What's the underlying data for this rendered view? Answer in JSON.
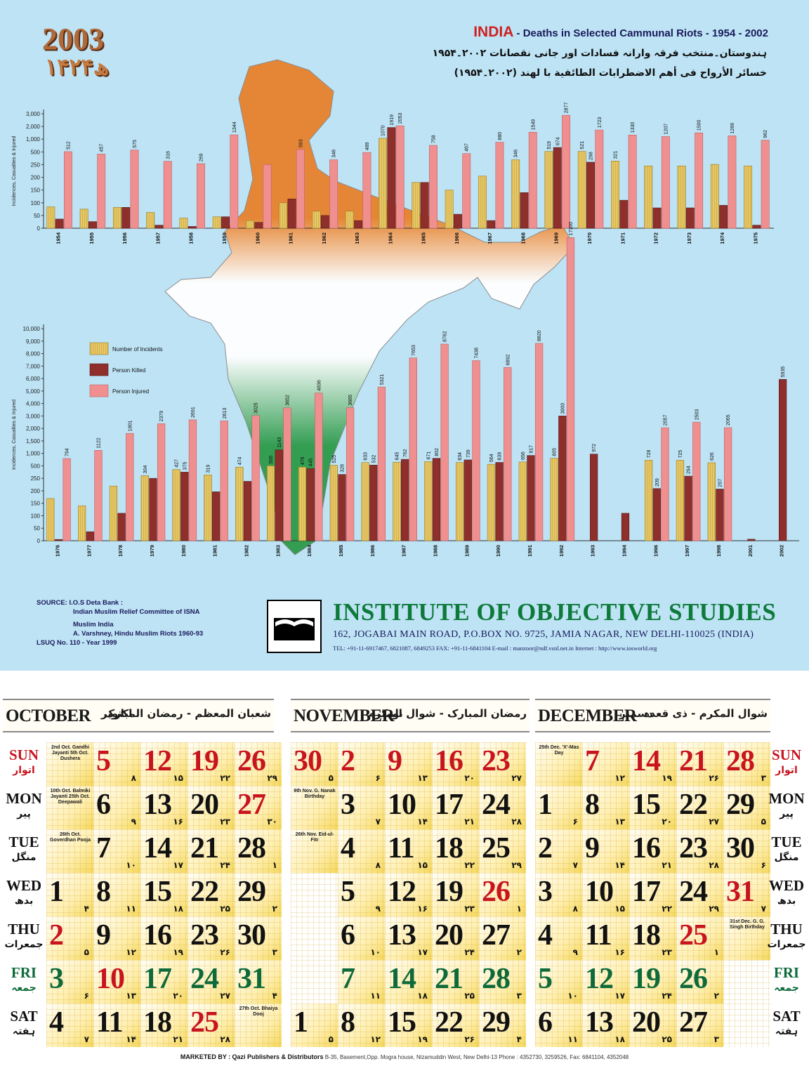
{
  "header": {
    "year": "2003",
    "hijri_year": "۱۴۲۴ھ",
    "title_country": "INDIA",
    "title_rest": " - Deaths in Selected Cammunal Riots - 1954 - 2002",
    "title_urdu": "ہندوستان۔منتخب فرقہ وارانہ فسادات اور جانی نقصانات ۲۰۰۲۔۱۹۵۴",
    "title_arabic": "خسائر الأرواح فى أهم الاضطرابات الطائفية با لهند (۲۰۰۲۔۱۹۵۴)"
  },
  "colors": {
    "incidents": "#e6c765",
    "killed": "#8e2f2c",
    "injured": "#ef8f8f",
    "map_top": "#e8822c",
    "map_bottom": "#2c9a4a",
    "background": "#bde3f5"
  },
  "chart_data": [
    {
      "type": "bar",
      "title": "",
      "ylabel": "Incidences, Casualties & Injured",
      "y_ticks": [
        "3,000",
        "2,000",
        "1,000",
        "500",
        "250",
        "200",
        "150",
        "100",
        "50",
        "0"
      ],
      "y_scale": "broken (0–250 linear, then 500 / 1,000 / 2,000 / 3,000)",
      "categories": [
        "1954",
        "1955",
        "1956",
        "1957",
        "1958",
        "1959",
        "1960",
        "1961",
        "1962",
        "1963",
        "1964",
        "1965",
        "1966",
        "1967",
        "1968",
        "1969",
        "1970",
        "1971",
        "1972",
        "1973",
        "1974",
        "1975"
      ],
      "series": [
        {
          "name": "Number of Incidents",
          "values": [
            84,
            75,
            82,
            62,
            40,
            45,
            30,
            100,
            67,
            67,
            1070,
            180,
            150,
            205,
            346,
            519,
            521,
            321,
            245,
            245,
            255,
            245
          ]
        },
        {
          "name": "Person Killed",
          "values": [
            36,
            26,
            82,
            12,
            7,
            45,
            23,
            115,
            50,
            30,
            1919,
            180,
            55,
            30,
            140,
            674,
            298,
            110,
            80,
            80,
            90,
            12
          ]
        },
        {
          "name": "Person Injured",
          "values": [
            512,
            457,
            575,
            316,
            269,
            1344,
            250,
            593,
            346,
            489,
            2053,
            758,
            467,
            880,
            1549,
            2877,
            1723,
            1330,
            1207,
            1500,
            1266,
            962
          ]
        }
      ],
      "data_labels": {
        "injured": [
          "512",
          "457",
          "575",
          "316",
          "269",
          "1344",
          "",
          "593",
          "346",
          "489",
          "2053",
          "758",
          "467",
          "880",
          "1549",
          "2877",
          "1723",
          "1330",
          "1207",
          "1500",
          "1266",
          "962"
        ],
        "incidents": [
          "",
          "",
          "",
          "",
          "",
          "",
          "",
          "",
          "",
          "",
          "1070",
          "",
          "",
          "",
          "346",
          "519",
          "521",
          "321",
          "",
          "",
          "",
          ""
        ],
        "killed": [
          "",
          "",
          "",
          "",
          "",
          "",
          "",
          "",
          "",
          "",
          "1919",
          "",
          "",
          "",
          "",
          "674",
          "298",
          "",
          "",
          "",
          "",
          ""
        ]
      }
    },
    {
      "type": "bar",
      "title": "",
      "ylabel": "Incidences, Casualties & Injured",
      "y_ticks": [
        "10,000",
        "9,000",
        "8,000",
        "7,000",
        "6,000",
        "5,000",
        "4,000",
        "3,000",
        "2,000",
        "1,500",
        "1,000",
        "500",
        "250",
        "200",
        "150",
        "100",
        "50",
        "0"
      ],
      "y_scale": "broken (0–250 linear, then 500 … 10,000)",
      "categories": [
        "1976",
        "1977",
        "1978",
        "1979",
        "1980",
        "1981",
        "1982",
        "1983",
        "1984",
        "1985",
        "1986",
        "1987",
        "1988",
        "1989",
        "1990",
        "1991",
        "1992",
        "1993",
        "1994",
        "1996",
        "1997",
        "1998",
        "2001",
        "2002"
      ],
      "series": [
        {
          "name": "Number of Incidents",
          "values": [
            169,
            140,
            219,
            304,
            427,
            319,
            474,
            500,
            476,
            525,
            633,
            645,
            671,
            634,
            564,
            656,
            805,
            0,
            0,
            728,
            725,
            626,
            0,
            0
          ]
        },
        {
          "name": "Person Killed",
          "values": [
            5,
            36,
            110,
            250,
            375,
            196,
            238,
            1143,
            445,
            328,
            532,
            762,
            802,
            739,
            639,
            917,
            3000,
            972,
            110,
            209,
            294,
            207,
            6,
            5935
          ]
        },
        {
          "name": "Person Injured",
          "values": [
            794,
            1122,
            1801,
            2379,
            2691,
            2613,
            3025,
            3652,
            4836,
            3665,
            5321,
            7653,
            8762,
            7438,
            6892,
            8820,
            17300,
            0,
            0,
            2057,
            2503,
            2065,
            0,
            0
          ]
        }
      ],
      "data_labels": {
        "injured": [
          "794",
          "1122",
          "1801",
          "2379",
          "2691",
          "2613",
          "3025",
          "3652",
          "4836",
          "3665",
          "5321",
          "7653",
          "8762",
          "7438",
          "6892",
          "8820",
          "17300",
          "",
          "",
          "2057",
          "2503",
          "2065",
          "",
          ""
        ],
        "incidents": [
          "",
          "",
          "",
          "304",
          "427",
          "319",
          "474",
          "500",
          "476",
          "525",
          "633",
          "645",
          "671",
          "634",
          "564",
          "656",
          "805",
          "",
          "",
          "728",
          "725",
          "626",
          "",
          ""
        ],
        "killed": [
          "",
          "",
          "",
          "",
          "375",
          "",
          "",
          "1143",
          "445",
          "328",
          "532",
          "762",
          "802",
          "739",
          "639",
          "917",
          "3000",
          "972",
          "",
          "209",
          "294",
          "207",
          "",
          "5935"
        ]
      },
      "legend": [
        "Number of Incidents",
        "Person Killed",
        "Person Injured"
      ],
      "legend_placement": "left, upper area"
    }
  ],
  "source": {
    "label": "SOURCE:",
    "lines": [
      "I.O.S Deta Bank :",
      "Indian Muslim Relief Committee of ISNA",
      "Muslim India",
      "A. Varshney, Hindu Muslim Riots 1960-93",
      "LSUQ No. 110 - Year 1999"
    ]
  },
  "institute": {
    "name": "INSTITUTE OF OBJECTIVE STUDIES",
    "address": "162, JOGABAI MAIN ROAD, P.O.BOX NO. 9725, JAMIA NAGAR, NEW DELHI-110025 (INDIA)",
    "contact": "TEL: +91-11-6917467, 6821087, 6849253   FAX: +91-11-6841104   E-mail : manzoor@ndf.vsnl.net.in    Internet : http://www.iosworld.org"
  },
  "calendar": {
    "days_left": [
      {
        "en": "SUN",
        "ur": "اتوار",
        "tone": "red"
      },
      {
        "en": "MON",
        "ur": "پیر",
        "tone": ""
      },
      {
        "en": "TUE",
        "ur": "منگل",
        "tone": ""
      },
      {
        "en": "WED",
        "ur": "بدھ",
        "tone": ""
      },
      {
        "en": "THU",
        "ur": "جمعرات",
        "tone": ""
      },
      {
        "en": "FRI",
        "ur": "جمعہ",
        "tone": "green"
      },
      {
        "en": "SAT",
        "ur": "ہفتہ",
        "tone": ""
      }
    ],
    "months": [
      {
        "name": "OCTOBER",
        "name_ur": "اکتوبر",
        "hijri": "شعبان المعظم - رمضان المبارک",
        "weeks": [
          [
            {
              "note": "2nd Oct. Gandhi Jayanti 5th Oct. Dushera"
            },
            {
              "d": "5",
              "h": "۸",
              "t": "red"
            },
            {
              "d": "12",
              "h": "۱۵",
              "t": "red"
            },
            {
              "d": "19",
              "h": "۲۲",
              "t": "red"
            },
            {
              "d": "26",
              "h": "۲۹",
              "t": "red"
            }
          ],
          [
            {
              "note": "10th Oct. Balmiki Jayanti 25th Oct. Deepawali"
            },
            {
              "d": "6",
              "h": "۹"
            },
            {
              "d": "13",
              "h": "۱۶"
            },
            {
              "d": "20",
              "h": "۲۳"
            },
            {
              "d": "27",
              "h": "۳۰",
              "t": "red"
            }
          ],
          [
            {
              "note": "26th Oct. Goverdhan Pooja"
            },
            {
              "d": "7",
              "h": "۱۰"
            },
            {
              "d": "14",
              "h": "۱۷"
            },
            {
              "d": "21",
              "h": "۲۴"
            },
            {
              "d": "28",
              "h": "۱"
            }
          ],
          [
            {
              "d": "1",
              "h": "۴"
            },
            {
              "d": "8",
              "h": "۱۱"
            },
            {
              "d": "15",
              "h": "۱۸"
            },
            {
              "d": "22",
              "h": "۲۵"
            },
            {
              "d": "29",
              "h": "۲"
            }
          ],
          [
            {
              "d": "2",
              "h": "۵",
              "t": "red"
            },
            {
              "d": "9",
              "h": "۱۲"
            },
            {
              "d": "16",
              "h": "۱۹"
            },
            {
              "d": "23",
              "h": "۲۶"
            },
            {
              "d": "30",
              "h": "۳"
            }
          ],
          [
            {
              "d": "3",
              "h": "۶",
              "t": "green"
            },
            {
              "d": "10",
              "h": "۱۳",
              "t": "red"
            },
            {
              "d": "17",
              "h": "۲۰",
              "t": "green"
            },
            {
              "d": "24",
              "h": "۲۷",
              "t": "green"
            },
            {
              "d": "31",
              "h": "۴",
              "t": "green"
            }
          ],
          [
            {
              "d": "4",
              "h": "۷"
            },
            {
              "d": "11",
              "h": "۱۴"
            },
            {
              "d": "18",
              "h": "۲۱"
            },
            {
              "d": "25",
              "h": "۲۸",
              "t": "red"
            },
            {
              "note": "27th Oct. Bhaiya Dooj"
            }
          ]
        ]
      },
      {
        "name": "NOVEMBER",
        "name_ur": "نومبر",
        "hijri": "رمضان المبارک - شوال المکرم",
        "weeks": [
          [
            {
              "d": "30",
              "h": "۵",
              "t": "red"
            },
            {
              "d": "2",
              "h": "۶",
              "t": "red"
            },
            {
              "d": "9",
              "h": "۱۳",
              "t": "red"
            },
            {
              "d": "16",
              "h": "۲۰",
              "t": "red"
            },
            {
              "d": "23",
              "h": "۲۷",
              "t": "red"
            }
          ],
          [
            {
              "note": "9th Nov. G. Nanak Birthday"
            },
            {
              "d": "3",
              "h": "۷"
            },
            {
              "d": "10",
              "h": "۱۴"
            },
            {
              "d": "17",
              "h": "۲۱"
            },
            {
              "d": "24",
              "h": "۲۸"
            }
          ],
          [
            {
              "note": "26th Nov. Eid-ul-Fitr"
            },
            {
              "d": "4",
              "h": "۸"
            },
            {
              "d": "11",
              "h": "۱۵"
            },
            {
              "d": "18",
              "h": "۲۲"
            },
            {
              "d": "25",
              "h": "۲۹"
            }
          ],
          [
            {},
            {
              "d": "5",
              "h": "۹"
            },
            {
              "d": "12",
              "h": "۱۶"
            },
            {
              "d": "19",
              "h": "۲۳"
            },
            {
              "d": "26",
              "h": "۱",
              "t": "red"
            }
          ],
          [
            {},
            {
              "d": "6",
              "h": "۱۰"
            },
            {
              "d": "13",
              "h": "۱۷"
            },
            {
              "d": "20",
              "h": "۲۴"
            },
            {
              "d": "27",
              "h": "۲"
            }
          ],
          [
            {},
            {
              "d": "7",
              "h": "۱۱",
              "t": "green"
            },
            {
              "d": "14",
              "h": "۱۸",
              "t": "green"
            },
            {
              "d": "21",
              "h": "۲۵",
              "t": "green"
            },
            {
              "d": "28",
              "h": "۳",
              "t": "green"
            }
          ],
          [
            {
              "d": "1",
              "h": "۵"
            },
            {
              "d": "8",
              "h": "۱۲"
            },
            {
              "d": "15",
              "h": "۱۹"
            },
            {
              "d": "22",
              "h": "۲۶"
            },
            {
              "d": "29",
              "h": "۴"
            }
          ]
        ]
      },
      {
        "name": "DECEMBER",
        "name_ur": "دسمبر",
        "hijri": "شوال المکرم - ذی قعدہ",
        "weeks": [
          [
            {
              "note": "25th Dec. 'X'-Mas Day"
            },
            {
              "d": "7",
              "h": "۱۲",
              "t": "red"
            },
            {
              "d": "14",
              "h": "۱۹",
              "t": "red"
            },
            {
              "d": "21",
              "h": "۲۶",
              "t": "red"
            },
            {
              "d": "28",
              "h": "۳",
              "t": "red"
            }
          ],
          [
            {
              "d": "1",
              "h": "۶"
            },
            {
              "d": "8",
              "h": "۱۳"
            },
            {
              "d": "15",
              "h": "۲۰"
            },
            {
              "d": "22",
              "h": "۲۷"
            },
            {
              "d": "29",
              "h": "۵"
            }
          ],
          [
            {
              "d": "2",
              "h": "۷"
            },
            {
              "d": "9",
              "h": "۱۴"
            },
            {
              "d": "16",
              "h": "۲۱"
            },
            {
              "d": "23",
              "h": "۲۸"
            },
            {
              "d": "30",
              "h": "۶"
            }
          ],
          [
            {
              "d": "3",
              "h": "۸"
            },
            {
              "d": "10",
              "h": "۱۵"
            },
            {
              "d": "17",
              "h": "۲۲"
            },
            {
              "d": "24",
              "h": "۲۹"
            },
            {
              "d": "31",
              "h": "۷",
              "t": "red"
            }
          ],
          [
            {
              "d": "4",
              "h": "۹"
            },
            {
              "d": "11",
              "h": "۱۶"
            },
            {
              "d": "18",
              "h": "۲۳"
            },
            {
              "d": "25",
              "h": "۱",
              "t": "red"
            },
            {
              "note": "31st Dec. G. G. Singh Birthday"
            }
          ],
          [
            {
              "d": "5",
              "h": "۱۰",
              "t": "green"
            },
            {
              "d": "12",
              "h": "۱۷",
              "t": "green"
            },
            {
              "d": "19",
              "h": "۲۴",
              "t": "green"
            },
            {
              "d": "26",
              "h": "۲",
              "t": "green"
            },
            {}
          ],
          [
            {
              "d": "6",
              "h": "۱۱"
            },
            {
              "d": "13",
              "h": "۱۸"
            },
            {
              "d": "20",
              "h": "۲۵"
            },
            {
              "d": "27",
              "h": "۳"
            },
            {}
          ]
        ]
      }
    ]
  },
  "footer": {
    "marketed_label": "MARKETED BY :",
    "publisher": "Qazi Publishers & Distributors",
    "address": "B-35, Basement,Opp. Mogra house, Nizamuddin West, New Delhi-13   Phone : 4352730, 3259526,  Fax: 6841104, 4352048"
  }
}
